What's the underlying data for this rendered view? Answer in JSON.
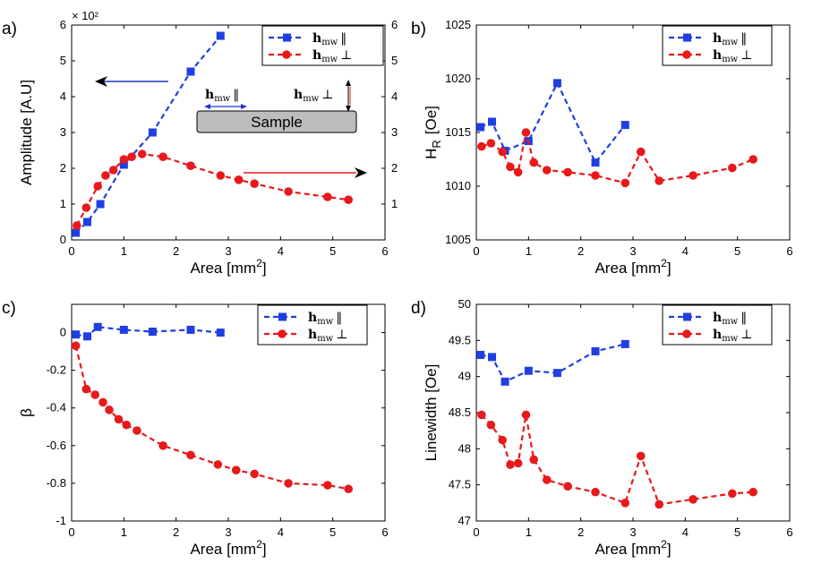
{
  "colors": {
    "blue": "#1f3fe0",
    "red": "#e8191b",
    "axis": "#000000",
    "sample_fill": "#bdbdbd",
    "arrow_blue": "#2233cc",
    "arrow_red": "#e8191b"
  },
  "legend": {
    "par_main": "h",
    "par_sub": "mw",
    "par_sym": "‖",
    "perp_main": "h",
    "perp_sub": "mw",
    "perp_sym": "⊥"
  },
  "chart_data": [
    {
      "id": "a",
      "type": "line",
      "panel_label": "a)",
      "xlabel": "Area  [mm²]",
      "ylabel": "Amplitude [A.U]",
      "xlim": [
        0,
        6
      ],
      "ylim": [
        0,
        6
      ],
      "xticks": [
        0,
        1,
        2,
        3,
        4,
        5,
        6
      ],
      "yticks": [
        0,
        1,
        2,
        3,
        4,
        5,
        6
      ],
      "y_multiplier": "× 10²",
      "right_axis": {
        "ylim": [
          0,
          6
        ],
        "ticks": [
          1,
          2,
          3,
          4,
          5,
          6
        ]
      },
      "series": [
        {
          "name": "hmw par",
          "marker": "square",
          "axis": "left",
          "x": [
            0.08,
            0.3,
            0.55,
            1.0,
            1.55,
            2.28,
            2.85
          ],
          "y": [
            0.2,
            0.5,
            1.0,
            2.1,
            3.0,
            4.7,
            5.7
          ]
        },
        {
          "name": "hmw perp",
          "marker": "circle",
          "axis": "right",
          "x": [
            0.1,
            0.28,
            0.5,
            0.65,
            0.8,
            1.0,
            1.15,
            1.35,
            1.75,
            2.28,
            2.85,
            3.2,
            3.5,
            4.15,
            4.9,
            5.3
          ],
          "y": [
            0.4,
            0.9,
            1.5,
            1.8,
            1.95,
            2.25,
            2.32,
            2.4,
            2.32,
            2.07,
            1.8,
            1.68,
            1.57,
            1.35,
            1.2,
            1.12
          ]
        }
      ],
      "inset": {
        "sample_label": "Sample",
        "par_label": "h",
        "perp_label": "h",
        "sub": "mw",
        "par_sym": "‖",
        "perp_sym": "⊥"
      }
    },
    {
      "id": "b",
      "type": "line",
      "panel_label": "b)",
      "xlabel": "Area [mm²]",
      "ylabel": "H",
      "ylabel_sub": "R",
      "ylabel_unit": "[Oe]",
      "xlim": [
        0,
        6
      ],
      "ylim": [
        1005,
        1025
      ],
      "xticks": [
        0,
        1,
        2,
        3,
        4,
        5,
        6
      ],
      "yticks": [
        1005,
        1010,
        1015,
        1020,
        1025
      ],
      "series": [
        {
          "name": "hmw par",
          "marker": "square",
          "x": [
            0.08,
            0.3,
            0.55,
            1.0,
            1.55,
            2.28,
            2.85
          ],
          "y": [
            1015.5,
            1016.0,
            1013.3,
            1014.2,
            1019.6,
            1012.2,
            1015.7
          ]
        },
        {
          "name": "hmw perp",
          "marker": "circle",
          "x": [
            0.1,
            0.28,
            0.5,
            0.65,
            0.8,
            0.95,
            1.1,
            1.35,
            1.75,
            2.28,
            2.85,
            3.15,
            3.5,
            4.15,
            4.9,
            5.3
          ],
          "y": [
            1013.7,
            1014.0,
            1013.2,
            1011.8,
            1011.3,
            1015.0,
            1012.2,
            1011.5,
            1011.3,
            1011.0,
            1010.3,
            1013.2,
            1010.5,
            1011.0,
            1011.7,
            1012.5
          ]
        }
      ]
    },
    {
      "id": "c",
      "type": "line",
      "panel_label": "c)",
      "xlabel": "Area [mm²]",
      "ylabel": "β",
      "xlim": [
        0,
        6
      ],
      "ylim": [
        -1,
        0.15
      ],
      "xticks": [
        0,
        1,
        2,
        3,
        4,
        5,
        6
      ],
      "yticks": [
        0,
        -0.2,
        -0.4,
        -0.6,
        -0.8,
        -1
      ],
      "series": [
        {
          "name": "hmw par",
          "marker": "square",
          "x": [
            0.08,
            0.3,
            0.5,
            1.0,
            1.55,
            2.28,
            2.85
          ],
          "y": [
            -0.01,
            -0.02,
            0.03,
            0.015,
            0.005,
            0.015,
            0.0
          ]
        },
        {
          "name": "hmw perp",
          "marker": "circle",
          "x": [
            0.08,
            0.28,
            0.45,
            0.6,
            0.72,
            0.9,
            1.05,
            1.25,
            1.75,
            2.28,
            2.8,
            3.15,
            3.5,
            4.15,
            4.9,
            5.3
          ],
          "y": [
            -0.07,
            -0.3,
            -0.33,
            -0.37,
            -0.41,
            -0.46,
            -0.49,
            -0.52,
            -0.6,
            -0.65,
            -0.7,
            -0.73,
            -0.75,
            -0.8,
            -0.81,
            -0.83
          ]
        }
      ]
    },
    {
      "id": "d",
      "type": "line",
      "panel_label": "d)",
      "xlabel": "Area [mm²]",
      "ylabel": "Linewidth  [Oe]",
      "xlim": [
        0,
        6
      ],
      "ylim": [
        47,
        50
      ],
      "xticks": [
        0,
        1,
        2,
        3,
        4,
        5,
        6
      ],
      "yticks": [
        47,
        47.5,
        48,
        48.5,
        49,
        49.5,
        50
      ],
      "series": [
        {
          "name": "hmw par",
          "marker": "square",
          "x": [
            0.08,
            0.3,
            0.55,
            1.0,
            1.55,
            2.28,
            2.85
          ],
          "y": [
            49.3,
            49.27,
            48.93,
            49.08,
            49.05,
            49.35,
            49.45
          ]
        },
        {
          "name": "hmw perp",
          "marker": "circle",
          "x": [
            0.1,
            0.28,
            0.5,
            0.65,
            0.8,
            0.95,
            1.1,
            1.35,
            1.75,
            2.28,
            2.85,
            3.15,
            3.5,
            4.15,
            4.9,
            5.3
          ],
          "y": [
            48.47,
            48.33,
            48.12,
            47.78,
            47.8,
            48.47,
            47.85,
            47.57,
            47.48,
            47.4,
            47.25,
            47.9,
            47.23,
            47.3,
            47.38,
            47.4
          ]
        }
      ]
    }
  ]
}
